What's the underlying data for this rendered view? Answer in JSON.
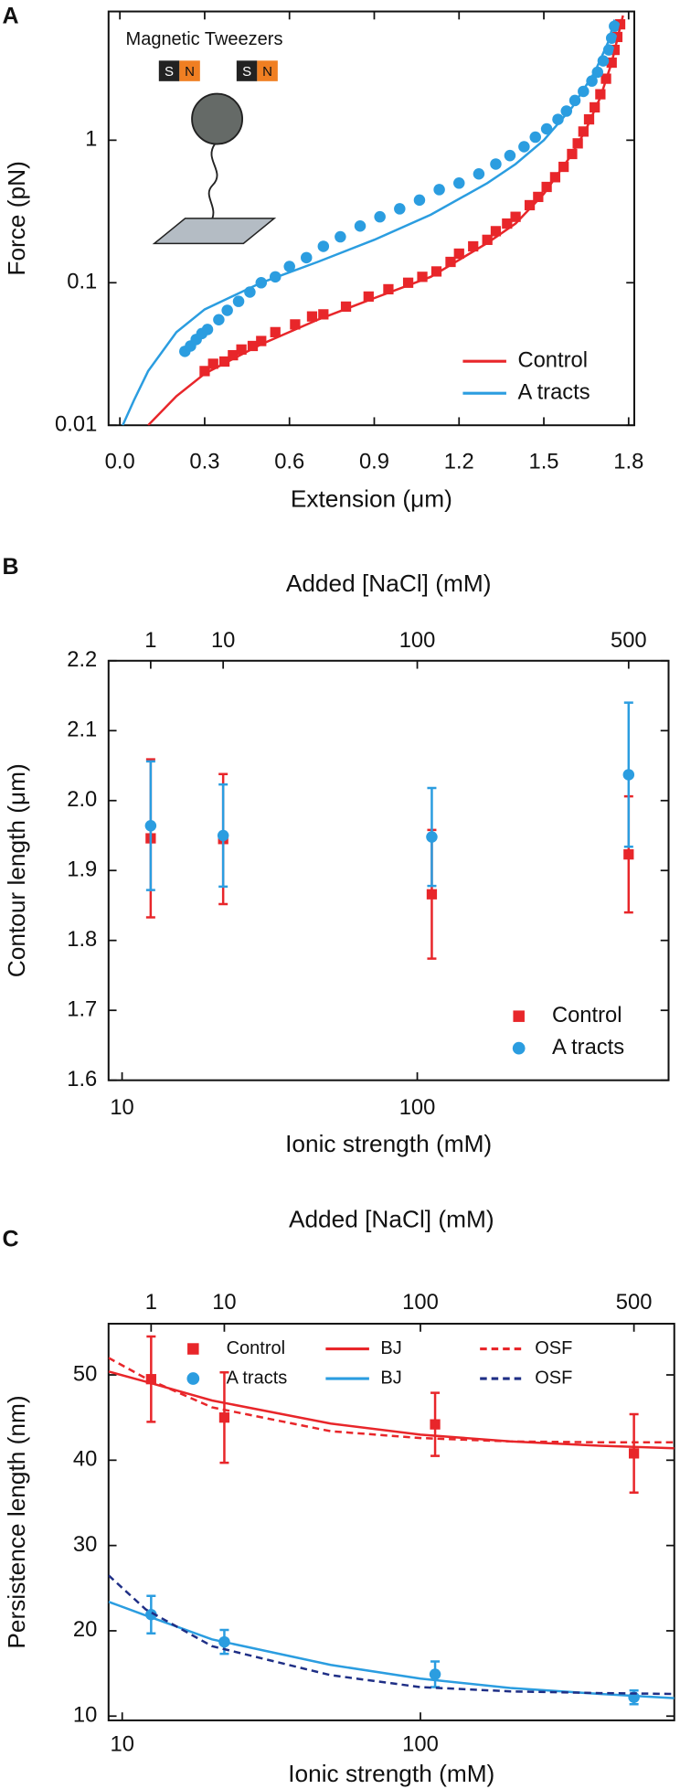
{
  "chart_data": [
    {
      "panel": "A",
      "type": "scatter",
      "xlabel": "Extension (μm)",
      "ylabel": "Force (pN)",
      "ylog": true,
      "xlim": [
        -0.04,
        1.82
      ],
      "ylim": [
        0.01,
        8
      ],
      "xticks": [
        {
          "value": 0,
          "label": "0.0"
        },
        0.3,
        0.6,
        0.9,
        1.2,
        1.5,
        1.8
      ],
      "yticks": [
        0.01,
        0.1,
        1
      ],
      "legend": "lower right",
      "annotations": {
        "inset_title": "Magnetic Tweezers",
        "magnet_s": "S",
        "magnet_n": "N"
      },
      "series": [
        {
          "color": "#e8262a",
          "marker": "square",
          "x": [
            0.3,
            0.33,
            0.37,
            0.4,
            0.43,
            0.47,
            0.5,
            0.55,
            0.62,
            0.68,
            0.72,
            0.8,
            0.88,
            0.95,
            1.02,
            1.07,
            1.12,
            1.17,
            1.2,
            1.25,
            1.3,
            1.33,
            1.37,
            1.4,
            1.45,
            1.48,
            1.51,
            1.54,
            1.57,
            1.6,
            1.62,
            1.64,
            1.66,
            1.68,
            1.7,
            1.72,
            1.74,
            1.75,
            1.76,
            1.77
          ],
          "values": [
            0.024,
            0.027,
            0.028,
            0.031,
            0.034,
            0.036,
            0.039,
            0.045,
            0.051,
            0.058,
            0.06,
            0.068,
            0.08,
            0.09,
            0.1,
            0.11,
            0.12,
            0.14,
            0.16,
            0.18,
            0.2,
            0.23,
            0.26,
            0.29,
            0.35,
            0.4,
            0.47,
            0.55,
            0.65,
            0.8,
            0.95,
            1.15,
            1.4,
            1.7,
            2.1,
            2.7,
            3.5,
            4.3,
            5.3,
            6.5
          ]
        },
        {
          "color": "#2b9de0",
          "marker": "circle",
          "x": [
            0.23,
            0.25,
            0.27,
            0.29,
            0.31,
            0.35,
            0.38,
            0.42,
            0.46,
            0.5,
            0.55,
            0.6,
            0.66,
            0.72,
            0.78,
            0.85,
            0.92,
            0.99,
            1.06,
            1.13,
            1.2,
            1.27,
            1.33,
            1.38,
            1.43,
            1.47,
            1.51,
            1.55,
            1.58,
            1.61,
            1.64,
            1.67,
            1.69,
            1.71,
            1.73,
            1.74,
            1.75
          ],
          "values": [
            0.033,
            0.036,
            0.04,
            0.044,
            0.047,
            0.055,
            0.064,
            0.074,
            0.086,
            0.1,
            0.11,
            0.13,
            0.15,
            0.18,
            0.21,
            0.25,
            0.29,
            0.33,
            0.38,
            0.45,
            0.5,
            0.58,
            0.68,
            0.78,
            0.9,
            1.05,
            1.2,
            1.4,
            1.6,
            1.9,
            2.2,
            2.6,
            3.0,
            3.6,
            4.3,
            5.2,
            6.3
          ]
        },
        {
          "name": "Control",
          "color": "#e8262a",
          "marker": "line",
          "x": [
            0.1,
            0.2,
            0.3,
            0.5,
            0.7,
            0.9,
            1.1,
            1.3,
            1.4,
            1.5,
            1.6,
            1.65,
            1.7,
            1.74,
            1.78
          ],
          "values": [
            0.01,
            0.016,
            0.023,
            0.037,
            0.055,
            0.078,
            0.11,
            0.19,
            0.26,
            0.42,
            0.8,
            1.2,
            2.0,
            3.5,
            7.5
          ]
        },
        {
          "name": "A tracts",
          "color": "#2b9de0",
          "marker": "line",
          "x": [
            0.01,
            0.05,
            0.1,
            0.2,
            0.3,
            0.5,
            0.7,
            0.9,
            1.1,
            1.3,
            1.4,
            1.5,
            1.6,
            1.68,
            1.73,
            1.75
          ],
          "values": [
            0.01,
            0.015,
            0.024,
            0.045,
            0.065,
            0.1,
            0.14,
            0.2,
            0.3,
            0.5,
            0.68,
            1.0,
            1.7,
            3.0,
            5.0,
            7.0
          ]
        }
      ]
    },
    {
      "panel": "B",
      "type": "scatter",
      "xlabel": "Ionic strength (mM)",
      "ylabel": "Contour length (μm)",
      "x2label": "Added [NaCl] (mM)",
      "xlog": true,
      "xlim": [
        9,
        710
      ],
      "ylim": [
        1.6,
        2.2
      ],
      "xticks": [
        10,
        100
      ],
      "x2ticks": [
        {
          "value": 12.5,
          "label": "1"
        },
        {
          "value": 22,
          "label": "10"
        },
        {
          "value": 100,
          "label": "100"
        },
        {
          "value": 520,
          "label": "500"
        }
      ],
      "yticks": [
        1.6,
        1.7,
        1.8,
        1.9,
        {
          "value": 2,
          "label": "2.0"
        },
        2.1,
        2.2
      ],
      "legend": "lower right",
      "series": [
        {
          "name": "Control",
          "color": "#e8262a",
          "marker": "square",
          "x": [
            12.5,
            22,
            112,
            520
          ],
          "values": [
            1.946,
            1.945,
            1.866,
            1.923
          ],
          "errors": [
            0.113,
            0.093,
            0.092,
            0.083
          ]
        },
        {
          "name": "A tracts",
          "color": "#2b9de0",
          "marker": "circle",
          "x": [
            12.5,
            22,
            112,
            520
          ],
          "values": [
            1.964,
            1.95,
            1.948,
            2.037
          ],
          "errors": [
            0.092,
            0.073,
            0.07,
            0.103
          ]
        }
      ]
    },
    {
      "panel": "C",
      "type": "scatter",
      "xlabel": "Ionic strength (mM)",
      "ylabel": "Persistence length (nm)",
      "x2label": "Added [NaCl] (mM)",
      "xlog": true,
      "xlim": [
        9,
        710
      ],
      "ylim": [
        9.5,
        56
      ],
      "xticks": [
        10,
        100
      ],
      "x2ticks": [
        {
          "value": 12.5,
          "label": "1"
        },
        {
          "value": 22,
          "label": "10"
        },
        {
          "value": 100,
          "label": "100"
        },
        {
          "value": 520,
          "label": "500"
        }
      ],
      "yticks": [
        10,
        20,
        30,
        40,
        50
      ],
      "legend": "upper center",
      "legend_columns": 3,
      "series": [
        {
          "name": "Control",
          "color": "#e8262a",
          "marker": "square",
          "x": [
            12.5,
            22,
            112,
            520
          ],
          "values": [
            49.5,
            45,
            44.2,
            40.8
          ],
          "errors": [
            5,
            5.3,
            3.7,
            4.6
          ]
        },
        {
          "name": "A tracts",
          "color": "#2b9de0",
          "marker": "circle",
          "x": [
            12.5,
            22,
            112,
            520
          ],
          "values": [
            21.9,
            18.7,
            14.9,
            12.2
          ],
          "errors": [
            2.2,
            1.4,
            1.5,
            0.8
          ]
        },
        {
          "name": "BJ",
          "color": "#e8262a",
          "marker": "line",
          "x": [
            9,
            12,
            20,
            50,
            100,
            200,
            400,
            710
          ],
          "values": [
            50.4,
            49.2,
            47.0,
            44.3,
            43.0,
            42.2,
            41.7,
            41.4
          ]
        },
        {
          "name": "BJ",
          "color": "#2b9de0",
          "marker": "line",
          "x": [
            9,
            12,
            20,
            50,
            100,
            200,
            400,
            710
          ],
          "values": [
            23.4,
            21.8,
            19.0,
            16.0,
            14.4,
            13.3,
            12.6,
            12.1
          ]
        },
        {
          "name": "OSF",
          "color": "#e8262a",
          "marker": "dashed",
          "x": [
            9,
            12,
            20,
            50,
            100,
            200,
            400,
            710
          ],
          "values": [
            52,
            49.6,
            46.2,
            43.4,
            42.6,
            42.2,
            42.1,
            42.1
          ]
        },
        {
          "name": "OSF",
          "color": "#1f2f86",
          "marker": "dashed",
          "x": [
            9,
            12,
            20,
            50,
            100,
            200,
            400,
            710
          ],
          "values": [
            26.5,
            22.5,
            18.2,
            14.8,
            13.4,
            12.9,
            12.7,
            12.6
          ]
        }
      ]
    }
  ]
}
